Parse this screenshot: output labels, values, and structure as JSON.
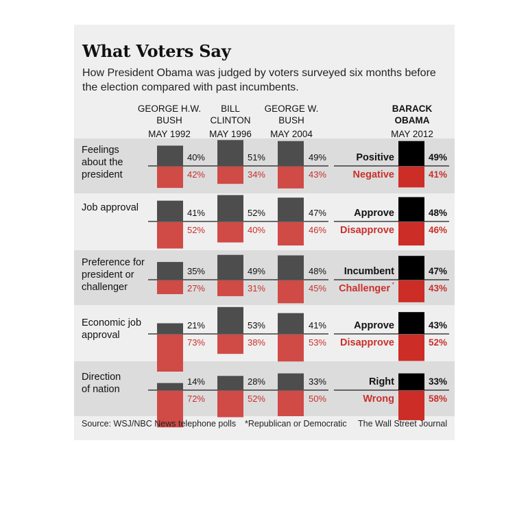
{
  "title": "What Voters Say",
  "subtitle": "How President Obama was judged by voters surveyed six months before the election compared with past incumbents.",
  "columns": [
    {
      "name_lines": [
        "GEORGE H.W.",
        "BUSH"
      ],
      "date": "MAY 1992"
    },
    {
      "name_lines": [
        "BILL",
        "CLINTON"
      ],
      "date": "MAY 1996"
    },
    {
      "name_lines": [
        "GEORGE W.",
        "BUSH"
      ],
      "date": "MAY 2004"
    },
    {
      "name_lines": [
        "BARACK",
        "OBAMA"
      ],
      "date": "MAY 2012"
    }
  ],
  "footer": {
    "source": "Source: WSJ/NBC News telephone polls",
    "note": "*Republican or Democratic",
    "credit": "The Wall Street Journal"
  },
  "colors": {
    "top_bar": "#4d4d4d",
    "bottom_bar": "#d04a46",
    "obama_top": "#000000",
    "obama_bottom": "#cc2d27",
    "red_text": "#c9302c",
    "band": "#dcdcdc",
    "panel": "#efefef"
  },
  "chart_data": {
    "type": "bar",
    "categories": [
      "Feelings about the president",
      "Job approval",
      "Preference for president or challenger",
      "Economic job approval",
      "Direction of nation"
    ],
    "category_label_lines": [
      [
        "Feelings",
        "about the",
        "president"
      ],
      [
        "Job approval"
      ],
      [
        "Preference for",
        "president or",
        "challenger"
      ],
      [
        "Economic job",
        "approval"
      ],
      [
        "Direction",
        "of nation"
      ]
    ],
    "obama_response_labels": [
      {
        "top": "Positive",
        "bottom": "Negative"
      },
      {
        "top": "Approve",
        "bottom": "Disapprove"
      },
      {
        "top": "Incumbent",
        "bottom": "Challenger",
        "bottom_marker": "*"
      },
      {
        "top": "Approve",
        "bottom": "Disapprove"
      },
      {
        "top": "Right",
        "bottom": "Wrong"
      }
    ],
    "series": [
      {
        "name": "GEORGE H.W. BUSH MAY 1992",
        "top": [
          40,
          41,
          35,
          21,
          14
        ],
        "bottom": [
          42,
          52,
          27,
          73,
          72
        ]
      },
      {
        "name": "BILL CLINTON MAY 1996",
        "top": [
          51,
          52,
          49,
          53,
          28
        ],
        "bottom": [
          34,
          40,
          31,
          38,
          52
        ]
      },
      {
        "name": "GEORGE W. BUSH MAY 2004",
        "top": [
          49,
          47,
          48,
          41,
          33
        ],
        "bottom": [
          43,
          46,
          45,
          53,
          50
        ]
      },
      {
        "name": "BARACK OBAMA MAY 2012",
        "top": [
          49,
          48,
          47,
          43,
          33
        ],
        "bottom": [
          41,
          46,
          43,
          52,
          58
        ]
      }
    ],
    "unit": "%"
  }
}
